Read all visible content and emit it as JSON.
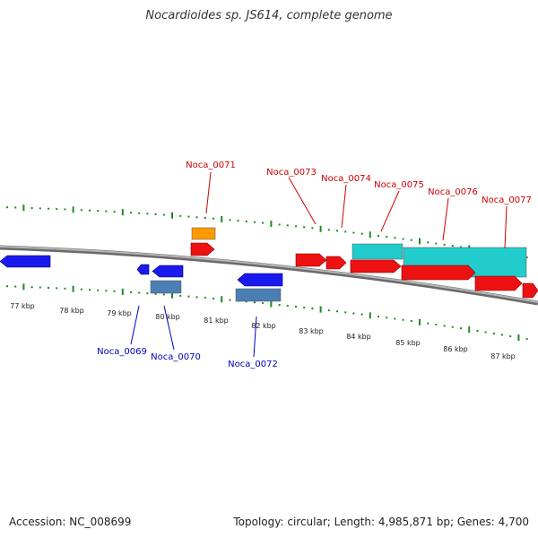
{
  "title": "Nocardioides sp. JS614, complete genome",
  "footer": {
    "accession": "Accession: NC_008699",
    "topology": "Topology: circular; Length: 4,985,871 bp; Genes: 4,700"
  },
  "colors": {
    "forward_gene": "#ee1111",
    "reverse_gene": "#1a1aee",
    "forward_rna": "#ff9900",
    "forward_other": "#22cccc",
    "reverse_other": "#4a7fb5",
    "forward_label": "#cc0000",
    "reverse_label": "#0000bb",
    "tick": "#228822",
    "backbone": "#8a8a8a"
  },
  "scale_labels": [
    "77 kbp",
    "78 kbp",
    "79 kbp",
    "80 kbp",
    "81 kbp",
    "82 kbp",
    "83 kbp",
    "84 kbp",
    "85 kbp",
    "86 kbp",
    "87 kbp"
  ],
  "gene_labels": {
    "forward": [
      "Noca_0071",
      "Noca_0073",
      "Noca_0074",
      "Noca_0075",
      "Noca_0076",
      "Noca_0077"
    ],
    "reverse": [
      "Noca_0069",
      "Noca_0070",
      "Noca_0072"
    ]
  }
}
